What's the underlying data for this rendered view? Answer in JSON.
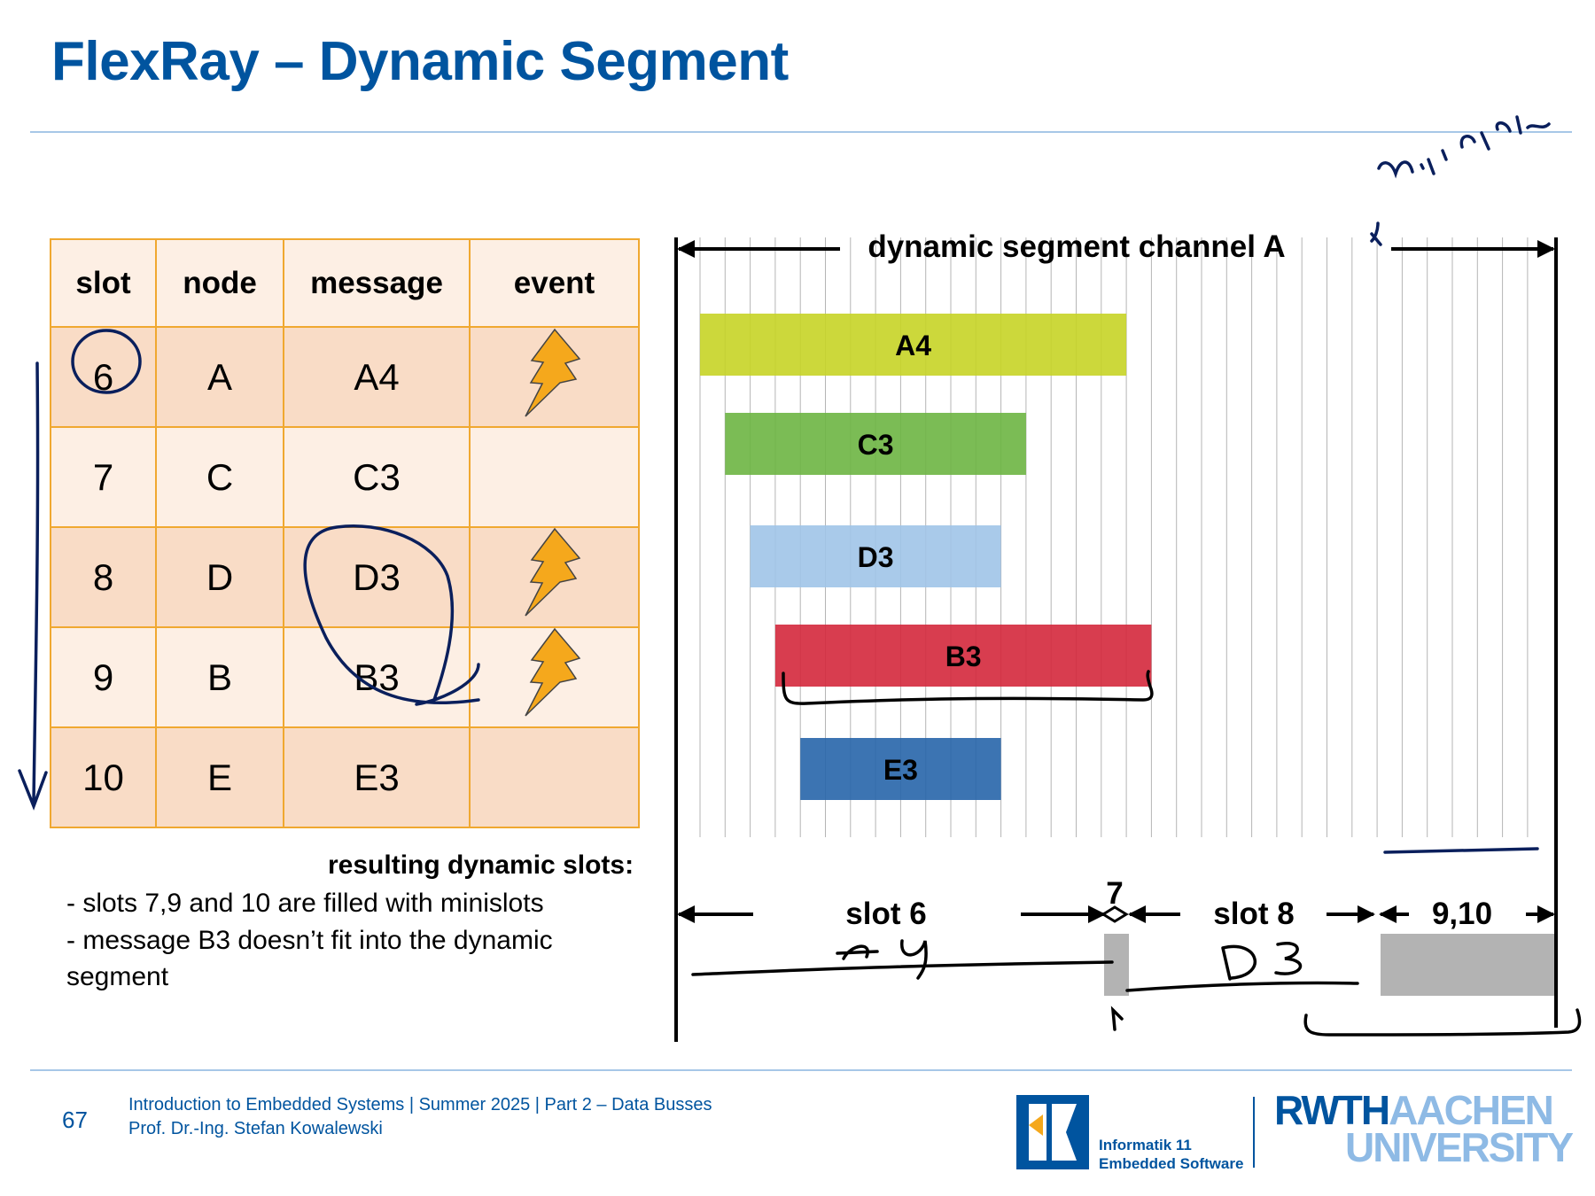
{
  "slide": {
    "title": "FlexRay – Dynamic Segment",
    "page_number": "67"
  },
  "table": {
    "headers": [
      "slot",
      "node",
      "message",
      "event"
    ],
    "rows": [
      {
        "slot": "6",
        "node": "A",
        "message": "A4",
        "event": true
      },
      {
        "slot": "7",
        "node": "C",
        "message": "C3",
        "event": false
      },
      {
        "slot": "8",
        "node": "D",
        "message": "D3",
        "event": true
      },
      {
        "slot": "9",
        "node": "B",
        "message": "B3",
        "event": true
      },
      {
        "slot": "10",
        "node": "E",
        "message": "E3",
        "event": false
      }
    ]
  },
  "result": {
    "heading": "resulting dynamic slots:",
    "lines": [
      "- slots 7,9 and 10 are filled with minislots",
      "- message B3 doesn’t fit into the dynamic"
    ],
    "continuation": "segment"
  },
  "diagram": {
    "title": "dynamic segment channel A",
    "minislot_count": 34,
    "messages": [
      {
        "label": "A4",
        "start_minislot": 1,
        "length_minislots": 17,
        "color": "#c6d426"
      },
      {
        "label": "C3",
        "start_minislot": 2,
        "length_minislots": 12,
        "color": "#6db543"
      },
      {
        "label": "D3",
        "start_minislot": 3,
        "length_minislots": 10,
        "color": "#a0c4e8"
      },
      {
        "label": "B3",
        "start_minislot": 4,
        "length_minislots": 15,
        "color": "#d4283c"
      },
      {
        "label": "E3",
        "start_minislot": 5,
        "length_minislots": 8,
        "color": "#2765aa"
      }
    ],
    "slot_labels": [
      "slot 6",
      "7",
      "slot 8",
      "9,10"
    ],
    "minislot_fill_color": "#b3b3b3"
  },
  "annotations": {
    "handwritten_minislots": "mini slots",
    "handwritten_a4": "A4",
    "handwritten_d3": "D3"
  },
  "footer": {
    "course_line": "Introduction to Embedded Systems | Summer 2025 | Part 2 – Data Busses",
    "author_line": "Prof. Dr.-Ing. Stefan Kowalewski",
    "institute_line1": "Informatik 11",
    "institute_line2": "Embedded Software",
    "university_part1": "RWTH",
    "university_part2": "AACHEN",
    "university_line2": "UNIVERSITY"
  },
  "colors": {
    "accent": "#00549f",
    "table_border": "#f0a830",
    "lightning": "#f5a81c"
  }
}
